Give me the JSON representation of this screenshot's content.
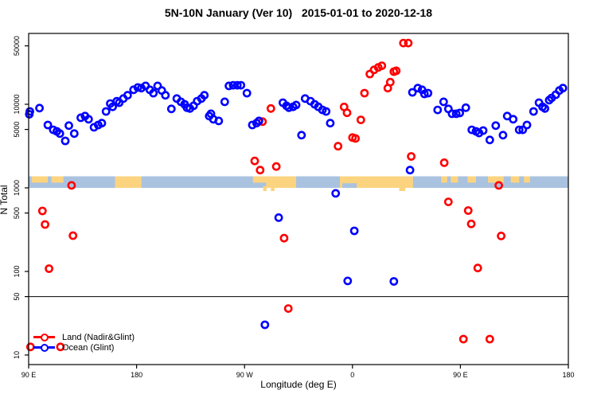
{
  "title": "5N-10N January (Ver 10)   2015-01-01 to 2020-12-18",
  "x_axis": {
    "label": "Longitude (deg E)",
    "ticks": [
      {
        "value": 90,
        "label": "90 E"
      },
      {
        "value": 180,
        "label": "180"
      },
      {
        "value": 270,
        "label": "90 W"
      },
      {
        "value": 360,
        "label": "0"
      },
      {
        "value": 450,
        "label": "90 E"
      },
      {
        "value": 540,
        "label": "180"
      }
    ]
  },
  "y_axis": {
    "label": "N Total",
    "ticks": [
      10,
      50,
      100,
      500,
      1000,
      5000,
      10000,
      50000
    ]
  },
  "legend": {
    "items": [
      {
        "label": "Land (Nadir&Glint)",
        "color": "#ff0000"
      },
      {
        "label": "Ocean (Glint)",
        "color": "#0000ff"
      }
    ]
  },
  "colors": {
    "land_series": "#ff0000",
    "ocean_series": "#0000ff",
    "map_ocean": "#a9c2e0",
    "map_land": "#fcd47f",
    "frame": "#000000"
  },
  "chart_data": {
    "type": "scatter",
    "title": "5N-10N January (Ver 10)  2015-01-01 to 2020-12-18",
    "xlabel": "Longitude (deg E)",
    "ylabel": "N Total",
    "yscale": "log",
    "xlim": [
      90,
      540
    ],
    "ylim": [
      8,
      70000
    ],
    "x_convention": "degrees east plotted on a wrapped axis 90E→180→90W→0→90E→180 (stored here as 90..540)",
    "reference_line_y": 50,
    "marker": "open-circle",
    "map_band": {
      "description": "5N-10N latitude strip map drawn across the plot near N=1200",
      "band_N_range": [
        1150,
        1650
      ],
      "ocean_color": "#a9c2e0",
      "land_color": "#fcd47f",
      "land_patches": [
        {
          "from": 92.5,
          "to": 106,
          "extent": "top"
        },
        {
          "from": 109,
          "to": 119,
          "extent": "top"
        },
        {
          "from": 162,
          "to": 184,
          "extent": "full"
        },
        {
          "from": 277,
          "to": 290,
          "extent": "top"
        },
        {
          "from": 288,
          "to": 313,
          "extent": "full"
        },
        {
          "from": 349.5,
          "to": 410.5,
          "extent": "full"
        },
        {
          "from": 434,
          "to": 439,
          "extent": "top"
        },
        {
          "from": 442,
          "to": 448,
          "extent": "top"
        },
        {
          "from": 456,
          "to": 463,
          "extent": "top"
        },
        {
          "from": 473,
          "to": 486,
          "extent": "top"
        },
        {
          "from": 492,
          "to": 499,
          "extent": "top"
        },
        {
          "from": 503,
          "to": 508,
          "extent": "top"
        }
      ],
      "ocean_notches": [
        {
          "from": 351.5,
          "to": 363.5,
          "extent": "bottom"
        }
      ],
      "land_drips": [
        {
          "from": 285.5,
          "to": 288.5
        },
        {
          "from": 292,
          "to": 295
        },
        {
          "from": 399,
          "to": 404
        }
      ]
    },
    "series": [
      {
        "name": "Land (Nadir&Glint)",
        "color": "#ff0000",
        "points": [
          [
            91.5,
            12.5
          ],
          [
            101.5,
            530
          ],
          [
            103.7,
            365
          ],
          [
            107,
            108
          ],
          [
            116.5,
            12.5
          ],
          [
            125.8,
            1070
          ],
          [
            127,
            268
          ],
          [
            278.5,
            2100
          ],
          [
            283,
            1630
          ],
          [
            285,
            6200
          ],
          [
            292,
            8900
          ],
          [
            296.5,
            1800
          ],
          [
            303,
            250
          ],
          [
            306.5,
            36
          ],
          [
            348,
            3150
          ],
          [
            353,
            9300
          ],
          [
            355.5,
            7900
          ],
          [
            360,
            4000
          ],
          [
            362.5,
            3900
          ],
          [
            367,
            6500
          ],
          [
            370,
            13600
          ],
          [
            374.5,
            23000
          ],
          [
            378,
            25800
          ],
          [
            381.5,
            27600
          ],
          [
            384.5,
            28900
          ],
          [
            389.5,
            15600
          ],
          [
            391.5,
            18400
          ],
          [
            394.5,
            24600
          ],
          [
            396.5,
            25200
          ],
          [
            402.5,
            54000
          ],
          [
            406.5,
            54000
          ],
          [
            409,
            2380
          ],
          [
            436.5,
            2000
          ],
          [
            440,
            680
          ],
          [
            452.5,
            15.5
          ],
          [
            456.5,
            535
          ],
          [
            459,
            370
          ],
          [
            464.5,
            110
          ],
          [
            474.5,
            15.5
          ],
          [
            482,
            1070
          ],
          [
            484,
            266
          ]
        ]
      },
      {
        "name": "Ocean (Glint)",
        "color": "#0000ff",
        "points": [
          [
            90.5,
            7600
          ],
          [
            91,
            8200
          ],
          [
            99,
            9000
          ],
          [
            106,
            5650
          ],
          [
            110.5,
            4950
          ],
          [
            113.5,
            4740
          ],
          [
            116,
            4460
          ],
          [
            120.5,
            3650
          ],
          [
            123.5,
            5560
          ],
          [
            128,
            4460
          ],
          [
            133.5,
            6900
          ],
          [
            137,
            7230
          ],
          [
            140,
            6620
          ],
          [
            144.5,
            5310
          ],
          [
            148,
            5650
          ],
          [
            151,
            5950
          ],
          [
            154.5,
            8200
          ],
          [
            158,
            10200
          ],
          [
            160,
            9330
          ],
          [
            163.5,
            10900
          ],
          [
            165.5,
            10450
          ],
          [
            169,
            11700
          ],
          [
            172.5,
            12800
          ],
          [
            177.5,
            14900
          ],
          [
            181,
            15900
          ],
          [
            184,
            15600
          ],
          [
            187.5,
            16600
          ],
          [
            191,
            14900
          ],
          [
            194,
            13600
          ],
          [
            197.5,
            16600
          ],
          [
            201,
            14600
          ],
          [
            204,
            12800
          ],
          [
            209,
            8800
          ],
          [
            213.5,
            11700
          ],
          [
            217,
            10700
          ],
          [
            220,
            10000
          ],
          [
            222,
            9100
          ],
          [
            224.5,
            8900
          ],
          [
            227.5,
            9600
          ],
          [
            230.5,
            10900
          ],
          [
            234,
            11700
          ],
          [
            236.5,
            12800
          ],
          [
            240.5,
            7230
          ],
          [
            242,
            7700
          ],
          [
            244,
            6620
          ],
          [
            248.5,
            6330
          ],
          [
            253.5,
            10700
          ],
          [
            257,
            16600
          ],
          [
            260.5,
            16900
          ],
          [
            264,
            16900
          ],
          [
            267,
            16900
          ],
          [
            272,
            13600
          ],
          [
            276.5,
            5650
          ],
          [
            280,
            5950
          ],
          [
            282,
            6330
          ],
          [
            287,
            23
          ],
          [
            298.5,
            440
          ],
          [
            302,
            10450
          ],
          [
            305,
            9600
          ],
          [
            307,
            9100
          ],
          [
            310.5,
            9330
          ],
          [
            313,
            9800
          ],
          [
            317.5,
            4270
          ],
          [
            320.5,
            11700
          ],
          [
            325,
            10900
          ],
          [
            328.5,
            10000
          ],
          [
            331.5,
            9330
          ],
          [
            335,
            8550
          ],
          [
            338,
            8200
          ],
          [
            341.5,
            5950
          ],
          [
            346,
            860
          ],
          [
            356,
            77
          ],
          [
            361.5,
            306
          ],
          [
            394.5,
            76
          ],
          [
            408,
            1630
          ],
          [
            410,
            13900
          ],
          [
            414.5,
            15600
          ],
          [
            418,
            14900
          ],
          [
            420,
            13300
          ],
          [
            423,
            13600
          ],
          [
            431,
            8550
          ],
          [
            436,
            10700
          ],
          [
            440,
            8800
          ],
          [
            443,
            7700
          ],
          [
            446.5,
            7700
          ],
          [
            449.5,
            7870
          ],
          [
            454.5,
            9100
          ],
          [
            459.5,
            4950
          ],
          [
            463,
            4740
          ],
          [
            465.5,
            4530
          ],
          [
            469,
            4850
          ],
          [
            474.5,
            3740
          ],
          [
            479.5,
            5560
          ],
          [
            485.5,
            4270
          ],
          [
            489,
            7230
          ],
          [
            494,
            6620
          ],
          [
            499,
            4950
          ],
          [
            502,
            4950
          ],
          [
            505.5,
            5650
          ],
          [
            511,
            8200
          ],
          [
            515.5,
            10450
          ],
          [
            518.5,
            9330
          ],
          [
            520.5,
            8900
          ],
          [
            524,
            11200
          ],
          [
            526,
            11900
          ],
          [
            529.5,
            13000
          ],
          [
            532.5,
            14600
          ],
          [
            535.5,
            15600
          ]
        ]
      }
    ]
  }
}
